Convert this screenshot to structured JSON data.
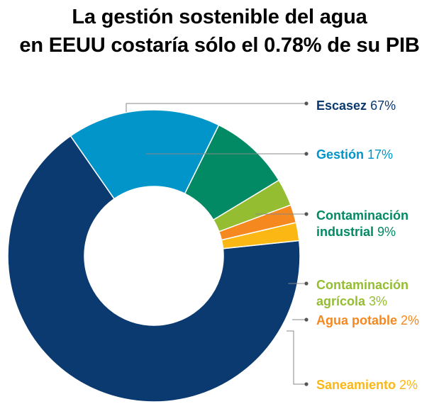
{
  "title": {
    "line1": "La gestión sostenible del agua",
    "line2": "en EEUU costaría sólo el 0.78% de su PIB"
  },
  "chart_data": {
    "type": "pie",
    "variant": "donut",
    "title": "La gestión sostenible del agua en EEUU costaría sólo el 0.78% de su PIB",
    "slices": [
      {
        "name": "Escasez",
        "value": 67,
        "pct_label": "67%",
        "color": "#0b3a70",
        "label_color": "#0b3a70"
      },
      {
        "name": "Gestión",
        "value": 17,
        "pct_label": "17%",
        "color": "#0195c9",
        "label_color": "#0195c9"
      },
      {
        "name": "Contaminación industrial",
        "name_lines": [
          "Contaminación",
          "industrial"
        ],
        "value": 9,
        "pct_label": "9%",
        "color": "#018a63",
        "label_color": "#018a63"
      },
      {
        "name": "Contaminación agrícola",
        "name_lines": [
          "Contaminación",
          "agrícola"
        ],
        "value": 3,
        "pct_label": "3%",
        "color": "#95bd32",
        "label_color": "#95bd32"
      },
      {
        "name": "Agua potable",
        "value": 2,
        "pct_label": "2%",
        "color": "#f5891f",
        "label_color": "#f5891f"
      },
      {
        "name": "Saneamiento",
        "value": 2,
        "pct_label": "2%",
        "color": "#fbb714",
        "label_color": "#fbb714"
      }
    ],
    "legend": "right",
    "leader_color": "#888888"
  }
}
